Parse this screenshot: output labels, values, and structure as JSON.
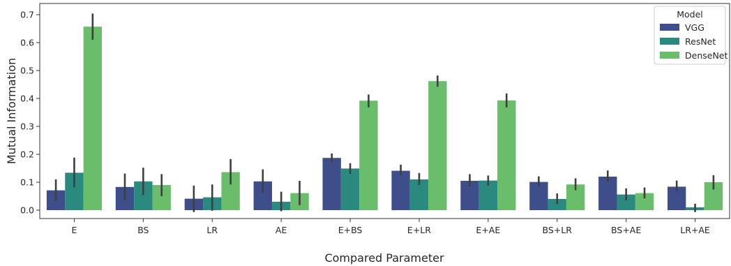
{
  "chart_data": {
    "type": "bar",
    "xlabel": "Compared Parameter",
    "ylabel": "Mutual Information",
    "ylim": [
      -0.03,
      0.74
    ],
    "yticks": [
      "0.0",
      "0.1",
      "0.2",
      "0.3",
      "0.4",
      "0.5",
      "0.6",
      "0.7"
    ],
    "grid": false,
    "legend_title": "Model",
    "legend_position": "top-right",
    "categories": [
      "E",
      "BS",
      "LR",
      "AE",
      "E+BS",
      "E+LR",
      "E+AE",
      "BS+LR",
      "BS+AE",
      "LR+AE"
    ],
    "series": [
      {
        "name": "VGG",
        "color": "#3e4e8a",
        "values": [
          0.071,
          0.083,
          0.041,
          0.103,
          0.187,
          0.141,
          0.105,
          0.101,
          0.12,
          0.084
        ],
        "error_low": [
          0.033,
          0.035,
          -0.007,
          0.062,
          0.172,
          0.125,
          0.085,
          0.085,
          0.102,
          0.068
        ],
        "error_high": [
          0.11,
          0.131,
          0.088,
          0.146,
          0.203,
          0.163,
          0.129,
          0.121,
          0.142,
          0.106
        ]
      },
      {
        "name": "ResNet",
        "color": "#2a8a80",
        "values": [
          0.134,
          0.103,
          0.046,
          0.03,
          0.149,
          0.11,
          0.106,
          0.04,
          0.056,
          0.01
        ],
        "error_low": [
          0.082,
          0.054,
          -0.002,
          -0.004,
          0.13,
          0.09,
          0.088,
          0.022,
          0.035,
          -0.007
        ],
        "error_high": [
          0.188,
          0.152,
          0.092,
          0.066,
          0.168,
          0.133,
          0.124,
          0.06,
          0.078,
          0.023
        ]
      },
      {
        "name": "DenseNet",
        "color": "#6abd6b",
        "values": [
          0.657,
          0.09,
          0.136,
          0.061,
          0.392,
          0.462,
          0.393,
          0.092,
          0.061,
          0.1
        ],
        "error_low": [
          0.61,
          0.05,
          0.092,
          0.018,
          0.368,
          0.442,
          0.368,
          0.071,
          0.042,
          0.074
        ],
        "error_high": [
          0.704,
          0.129,
          0.183,
          0.105,
          0.414,
          0.482,
          0.418,
          0.114,
          0.081,
          0.125
        ]
      }
    ]
  }
}
